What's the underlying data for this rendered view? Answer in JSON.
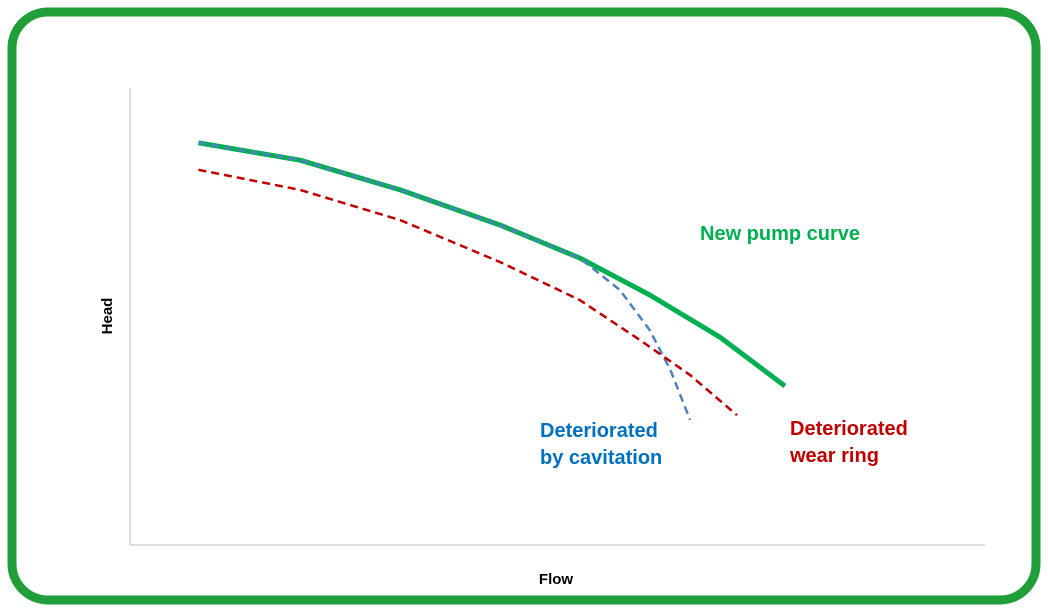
{
  "chart_data": {
    "type": "line",
    "xlabel": "Flow",
    "ylabel": "Head",
    "xlim": [
      0,
      100
    ],
    "ylim": [
      0,
      100
    ],
    "series": [
      {
        "name": "New pump curve",
        "color": "#00b050",
        "dashed": false,
        "x": [
          8.0,
          19.9,
          31.6,
          43.3,
          52.6,
          60.8,
          69.0,
          76.6
        ],
        "values": [
          88.0,
          84.2,
          77.7,
          70.0,
          62.8,
          54.7,
          45.5,
          34.8
        ]
      },
      {
        "name": "Deteriorated by cavitation",
        "color": "#4f81bd",
        "dashed": true,
        "x": [
          8.0,
          19.9,
          31.6,
          43.3,
          52.6,
          57.3,
          60.8,
          63.2,
          65.5
        ],
        "values": [
          88.0,
          84.2,
          77.7,
          70.0,
          62.8,
          55.8,
          47.0,
          38.3,
          27.4
        ]
      },
      {
        "name": "Deteriorated wear ring",
        "color": "#c00000",
        "dashed": true,
        "x": [
          8.0,
          19.9,
          31.6,
          43.3,
          52.6,
          59.6,
          65.5,
          71.0
        ],
        "values": [
          82.1,
          77.7,
          71.1,
          61.9,
          53.6,
          44.9,
          37.2,
          28.4
        ]
      }
    ],
    "annotations": [
      {
        "lines": [
          "New pump curve"
        ],
        "color": "#00b050"
      },
      {
        "lines": [
          "Deteriorated",
          "by cavitation"
        ],
        "color": "#0070c0"
      },
      {
        "lines": [
          "Deteriorated",
          "wear ring"
        ],
        "color": "#c00000"
      }
    ]
  }
}
